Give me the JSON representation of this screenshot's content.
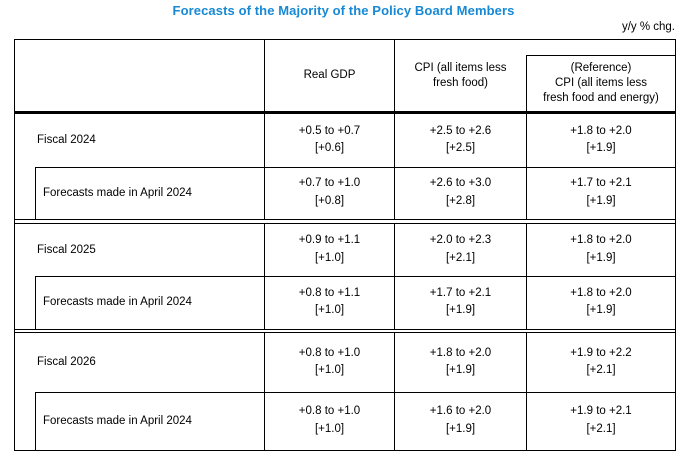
{
  "page": {
    "title": "Forecasts of the Majority of the Policy Board Members",
    "unit_note": "y/y % chg.",
    "colors": {
      "title_blue": "#1789d4",
      "border_black": "#000000"
    }
  },
  "table": {
    "column_headers": {
      "empty": "",
      "real_gdp": "Real GDP",
      "cpi": "CPI (all items less\nfresh food)",
      "cpi_reference": "(Reference)\nCPI (all items less\nfresh food and energy)"
    },
    "rows": [
      {
        "label": "Fiscal 2024",
        "indented": false,
        "real_gdp_range": "+0.5 to +0.7",
        "real_gdp_median": "[+0.6]",
        "cpi_range": "+2.5 to +2.6",
        "cpi_median": "[+2.5]",
        "reference_range": "+1.8 to +2.0",
        "reference_median": "[+1.9]"
      },
      {
        "label": "Forecasts made in April 2024",
        "indented": true,
        "real_gdp_range": "+0.7 to +1.0",
        "real_gdp_median": "[+0.8]",
        "cpi_range": "+2.6 to +3.0",
        "cpi_median": "[+2.8]",
        "reference_range": "+1.7 to +2.1",
        "reference_median": "[+1.9]"
      },
      {
        "label": "Fiscal 2025",
        "indented": false,
        "real_gdp_range": "+0.9 to +1.1",
        "real_gdp_median": "[+1.0]",
        "cpi_range": "+2.0 to +2.3",
        "cpi_median": "[+2.1]",
        "reference_range": "+1.8 to +2.0",
        "reference_median": "[+1.9]"
      },
      {
        "label": "Forecasts made in April 2024",
        "indented": true,
        "real_gdp_range": "+0.8 to +1.1",
        "real_gdp_median": "[+1.0]",
        "cpi_range": "+1.7 to +2.1",
        "cpi_median": "[+1.9]",
        "reference_range": "+1.8 to +2.0",
        "reference_median": "[+1.9]"
      },
      {
        "label": "Fiscal 2026",
        "indented": false,
        "real_gdp_range": "+0.8 to +1.0",
        "real_gdp_median": "[+1.0]",
        "cpi_range": "+1.8 to +2.0",
        "cpi_median": "[+1.9]",
        "reference_range": "+1.9 to +2.2",
        "reference_median": "[+2.1]"
      },
      {
        "label": "Forecasts made in April 2024",
        "indented": true,
        "real_gdp_range": "+0.8 to +1.0",
        "real_gdp_median": "[+1.0]",
        "cpi_range": "+1.6 to +2.0",
        "cpi_median": "[+1.9]",
        "reference_range": "+1.9 to +2.1",
        "reference_median": "[+2.1]"
      }
    ]
  }
}
